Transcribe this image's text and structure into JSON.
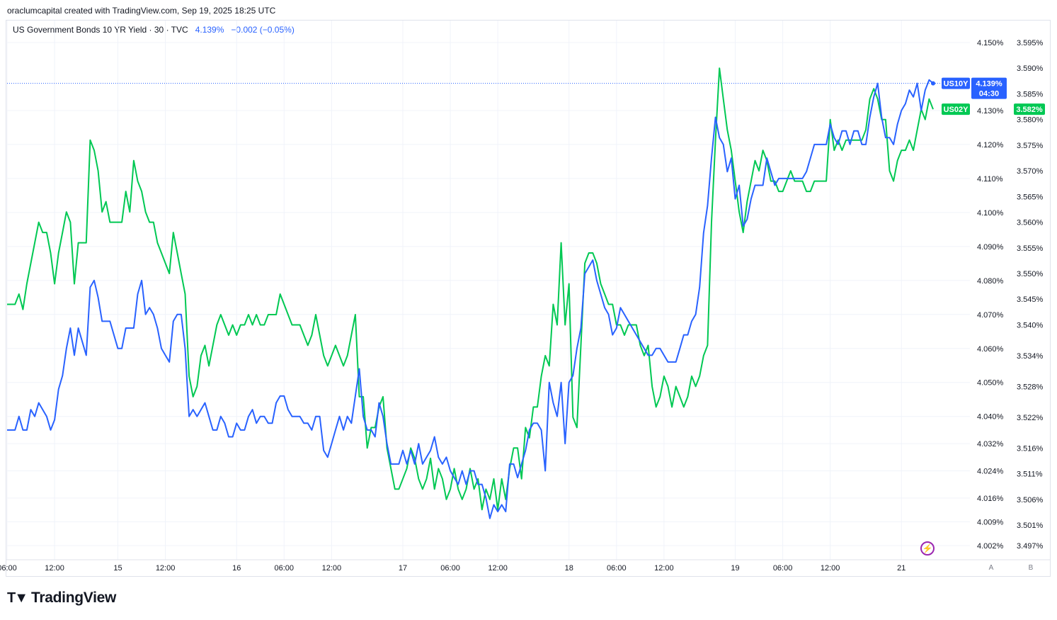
{
  "header": {
    "credit": "oraclumcapital created with TradingView.com, Sep 19, 2025 18:25 UTC"
  },
  "legend": {
    "title": "US Government Bonds 10 YR Yield · 30 · TVC",
    "price": "4.139%",
    "change": "−0.002 (−0.05%)"
  },
  "footer": {
    "brand": "TradingView"
  },
  "axis_buttons": {
    "a": "A",
    "b": "B"
  },
  "colors": {
    "us10y": "#2962ff",
    "us02y": "#00c853",
    "grid": "#f0f3fa",
    "text": "#131722"
  },
  "chart_data": {
    "type": "line",
    "x_ticks": [
      {
        "label": "06:00",
        "i": 0
      },
      {
        "label": "12:00",
        "i": 12
      },
      {
        "label": "15",
        "i": 28
      },
      {
        "label": "12:00",
        "i": 40
      },
      {
        "label": "16",
        "i": 58
      },
      {
        "label": "06:00",
        "i": 70
      },
      {
        "label": "12:00",
        "i": 82
      },
      {
        "label": "17",
        "i": 100
      },
      {
        "label": "06:00",
        "i": 112
      },
      {
        "label": "12:00",
        "i": 124
      },
      {
        "label": "18",
        "i": 142
      },
      {
        "label": "06:00",
        "i": 154
      },
      {
        "label": "12:00",
        "i": 166
      },
      {
        "label": "19",
        "i": 184
      },
      {
        "label": "06:00",
        "i": 196
      },
      {
        "label": "12:00",
        "i": 208
      },
      {
        "label": "21",
        "i": 226
      }
    ],
    "y_left_ticks": [
      "4.150%",
      "4.130%",
      "4.120%",
      "4.110%",
      "4.100%",
      "4.090%",
      "4.080%",
      "4.070%",
      "4.060%",
      "4.050%",
      "4.040%",
      "4.032%",
      "4.024%",
      "4.016%",
      "4.009%",
      "4.002%"
    ],
    "y_left_range": [
      4.002,
      4.15
    ],
    "y_right_ticks": [
      "3.595%",
      "3.590%",
      "3.585%",
      "3.580%",
      "3.575%",
      "3.570%",
      "3.565%",
      "3.560%",
      "3.555%",
      "3.550%",
      "3.545%",
      "3.540%",
      "3.534%",
      "3.528%",
      "3.522%",
      "3.516%",
      "3.511%",
      "3.506%",
      "3.501%",
      "3.497%"
    ],
    "y_right_range": [
      3.497,
      3.595
    ],
    "series": [
      {
        "name": "US10Y",
        "axis": "left",
        "last_label": "4.139%",
        "countdown": "04:30",
        "values": [
          4.036,
          4.036,
          4.036,
          4.04,
          4.036,
          4.036,
          4.042,
          4.04,
          4.044,
          4.042,
          4.04,
          4.036,
          4.039,
          4.048,
          4.052,
          4.06,
          4.066,
          4.058,
          4.066,
          4.062,
          4.058,
          4.078,
          4.08,
          4.075,
          4.068,
          4.068,
          4.068,
          4.064,
          4.06,
          4.06,
          4.066,
          4.066,
          4.066,
          4.076,
          4.08,
          4.07,
          4.072,
          4.07,
          4.066,
          4.06,
          4.058,
          4.056,
          4.068,
          4.07,
          4.07,
          4.06,
          4.04,
          4.042,
          4.04,
          4.042,
          4.044,
          4.04,
          4.036,
          4.036,
          4.04,
          4.038,
          4.034,
          4.034,
          4.038,
          4.036,
          4.036,
          4.04,
          4.042,
          4.038,
          4.04,
          4.04,
          4.038,
          4.038,
          4.044,
          4.046,
          4.046,
          4.042,
          4.04,
          4.04,
          4.04,
          4.038,
          4.038,
          4.036,
          4.04,
          4.04,
          4.03,
          4.028,
          4.032,
          4.036,
          4.04,
          4.036,
          4.04,
          4.038,
          4.046,
          4.054,
          4.04,
          4.036,
          4.036,
          4.034,
          4.044,
          4.04,
          4.032,
          4.026,
          4.026,
          4.026,
          4.03,
          4.026,
          4.03,
          4.026,
          4.032,
          4.026,
          4.028,
          4.03,
          4.034,
          4.028,
          4.026,
          4.028,
          4.024,
          4.022,
          4.02,
          4.024,
          4.02,
          4.024,
          4.024,
          4.02,
          4.02,
          4.016,
          4.01,
          4.014,
          4.012,
          4.014,
          4.012,
          4.026,
          4.026,
          4.022,
          4.026,
          4.03,
          4.036,
          4.038,
          4.038,
          4.036,
          4.024,
          4.05,
          4.044,
          4.04,
          4.05,
          4.032,
          4.05,
          4.052,
          4.06,
          4.066,
          4.082,
          4.084,
          4.086,
          4.08,
          4.076,
          4.072,
          4.07,
          4.064,
          4.066,
          4.072,
          4.07,
          4.068,
          4.066,
          4.064,
          4.062,
          4.06,
          4.058,
          4.058,
          4.06,
          4.06,
          4.058,
          4.056,
          4.056,
          4.056,
          4.06,
          4.064,
          4.064,
          4.068,
          4.07,
          4.078,
          4.094,
          4.102,
          4.116,
          4.128,
          4.122,
          4.12,
          4.112,
          4.116,
          4.104,
          4.108,
          4.096,
          4.098,
          4.104,
          4.108,
          4.108,
          4.108,
          4.116,
          4.112,
          4.108,
          4.11,
          4.11,
          4.11,
          4.11,
          4.11,
          4.11,
          4.11,
          4.112,
          4.116,
          4.12,
          4.12,
          4.12,
          4.12,
          4.126,
          4.122,
          4.12,
          4.124,
          4.124,
          4.12,
          4.124,
          4.124,
          4.12,
          4.12,
          4.128,
          4.134,
          4.138,
          4.128,
          4.122,
          4.122,
          4.12,
          4.126,
          4.13,
          4.132,
          4.136,
          4.134,
          4.138,
          4.13,
          4.136,
          4.139,
          4.138
        ],
        "ovr_note": ""
      },
      {
        "name": "US02Y",
        "axis": "right",
        "last_label": "3.582%",
        "values": [
          3.544,
          3.544,
          3.544,
          3.546,
          3.543,
          3.548,
          3.552,
          3.556,
          3.56,
          3.558,
          3.558,
          3.554,
          3.548,
          3.554,
          3.558,
          3.562,
          3.56,
          3.548,
          3.556,
          3.556,
          3.556,
          3.576,
          3.574,
          3.57,
          3.562,
          3.564,
          3.56,
          3.56,
          3.56,
          3.56,
          3.566,
          3.562,
          3.572,
          3.568,
          3.566,
          3.562,
          3.56,
          3.56,
          3.556,
          3.554,
          3.552,
          3.55,
          3.558,
          3.554,
          3.55,
          3.546,
          3.53,
          3.526,
          3.528,
          3.534,
          3.536,
          3.532,
          3.536,
          3.54,
          3.542,
          3.54,
          3.538,
          3.54,
          3.538,
          3.54,
          3.54,
          3.542,
          3.54,
          3.542,
          3.54,
          3.54,
          3.542,
          3.542,
          3.542,
          3.546,
          3.544,
          3.542,
          3.54,
          3.54,
          3.54,
          3.538,
          3.536,
          3.538,
          3.542,
          3.538,
          3.534,
          3.532,
          3.534,
          3.536,
          3.534,
          3.532,
          3.534,
          3.538,
          3.542,
          3.526,
          3.526,
          3.516,
          3.52,
          3.52,
          3.524,
          3.526,
          3.516,
          3.512,
          3.508,
          3.508,
          3.51,
          3.512,
          3.516,
          3.514,
          3.51,
          3.508,
          3.51,
          3.514,
          3.508,
          3.512,
          3.51,
          3.506,
          3.508,
          3.512,
          3.508,
          3.506,
          3.508,
          3.512,
          3.508,
          3.51,
          3.504,
          3.508,
          3.506,
          3.51,
          3.504,
          3.51,
          3.506,
          3.512,
          3.516,
          3.516,
          3.51,
          3.52,
          3.518,
          3.524,
          3.524,
          3.53,
          3.534,
          3.532,
          3.544,
          3.54,
          3.556,
          3.54,
          3.548,
          3.522,
          3.52,
          3.536,
          3.552,
          3.554,
          3.554,
          3.552,
          3.548,
          3.546,
          3.544,
          3.544,
          3.54,
          3.54,
          3.538,
          3.54,
          3.54,
          3.54,
          3.536,
          3.534,
          3.536,
          3.528,
          3.524,
          3.526,
          3.53,
          3.528,
          3.524,
          3.528,
          3.526,
          3.524,
          3.526,
          3.53,
          3.528,
          3.53,
          3.534,
          3.536,
          3.56,
          3.576,
          3.59,
          3.584,
          3.578,
          3.574,
          3.568,
          3.562,
          3.558,
          3.564,
          3.568,
          3.572,
          3.57,
          3.574,
          3.572,
          3.568,
          3.568,
          3.566,
          3.566,
          3.568,
          3.57,
          3.568,
          3.568,
          3.568,
          3.566,
          3.566,
          3.568,
          3.568,
          3.568,
          3.568,
          3.58,
          3.574,
          3.576,
          3.574,
          3.576,
          3.576,
          3.576,
          3.576,
          3.576,
          3.578,
          3.584,
          3.586,
          3.584,
          3.58,
          3.58,
          3.57,
          3.568,
          3.572,
          3.574,
          3.574,
          3.576,
          3.574,
          3.578,
          3.582,
          3.58,
          3.584,
          3.582
        ]
      }
    ]
  }
}
